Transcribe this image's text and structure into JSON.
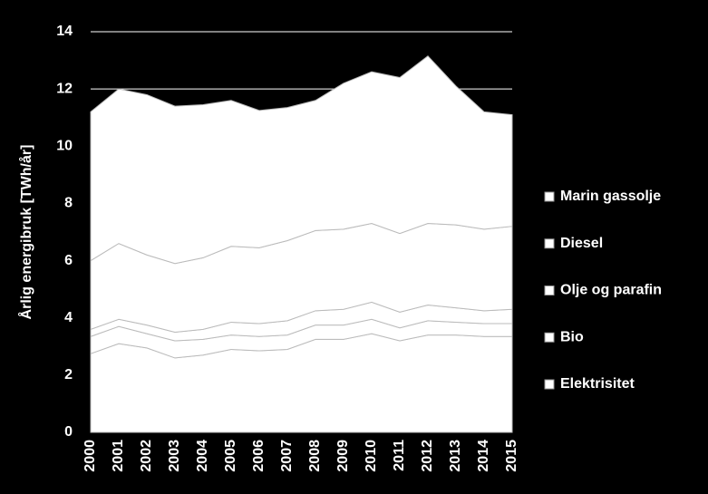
{
  "chart_data": {
    "type": "stacked_area",
    "y_label": "Årlig energibruk [TWh/år]",
    "categories": [
      "2000",
      "2001",
      "2002",
      "2003",
      "2004",
      "2005",
      "2006",
      "2007",
      "2008",
      "2009",
      "2010",
      "2011",
      "2012",
      "2013",
      "2014",
      "2015"
    ],
    "series": [
      {
        "name": "Elektrisitet",
        "color": "#ffffff",
        "values": [
          2.75,
          3.1,
          2.95,
          2.6,
          2.7,
          2.9,
          2.85,
          2.9,
          3.25,
          3.25,
          3.45,
          3.2,
          3.4,
          3.4,
          3.35,
          3.35
        ]
      },
      {
        "name": "Bio",
        "color": "#ffffff",
        "values": [
          0.6,
          0.6,
          0.5,
          0.6,
          0.55,
          0.5,
          0.5,
          0.5,
          0.5,
          0.5,
          0.5,
          0.45,
          0.5,
          0.45,
          0.45,
          0.45
        ]
      },
      {
        "name": "Olje og parafin",
        "color": "#ffffff",
        "values": [
          0.25,
          0.25,
          0.3,
          0.3,
          0.35,
          0.45,
          0.45,
          0.5,
          0.5,
          0.55,
          0.6,
          0.55,
          0.55,
          0.5,
          0.45,
          0.5
        ]
      },
      {
        "name": "Diesel",
        "color": "#ffffff",
        "values": [
          2.4,
          2.65,
          2.45,
          2.4,
          2.5,
          2.65,
          2.65,
          2.8,
          2.8,
          2.8,
          2.75,
          2.75,
          2.85,
          2.9,
          2.85,
          2.9
        ]
      },
      {
        "name": "Marin gassolje",
        "color": "#ffffff",
        "values": [
          5.2,
          5.4,
          5.6,
          5.5,
          5.35,
          5.1,
          4.8,
          4.65,
          4.55,
          5.1,
          5.3,
          5.45,
          5.85,
          4.85,
          4.1,
          3.9
        ]
      }
    ],
    "ylim": [
      0,
      14
    ],
    "yticks": [
      0,
      2,
      4,
      6,
      8,
      10,
      12,
      14
    ],
    "grid": true
  }
}
